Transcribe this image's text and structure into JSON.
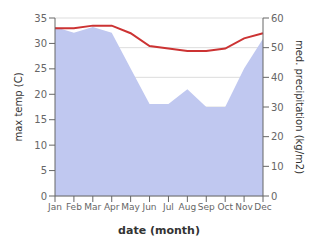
{
  "chart_data": {
    "type": "line",
    "xlabel": "date (month)",
    "ylabel": "max temp (C)",
    "y2label": "med. precipitation (kg/m2)",
    "categories": [
      "Jan",
      "Feb",
      "Mar",
      "Apr",
      "May",
      "Jun",
      "Jul",
      "Aug",
      "Sep",
      "Oct",
      "Nov",
      "Dec"
    ],
    "series": [
      {
        "type": "area",
        "axis": "y2",
        "color": "#c0c8f0",
        "values": [
          57,
          55,
          57,
          55,
          43,
          31,
          31,
          36,
          30,
          30,
          43,
          53
        ]
      },
      {
        "type": "line",
        "color": "#cc3333",
        "values": [
          33,
          33,
          33.5,
          33.5,
          32,
          29.5,
          29,
          28.5,
          28.5,
          29,
          31,
          32
        ]
      }
    ],
    "ylim": [
      0,
      35
    ],
    "yticks": [
      0,
      5,
      10,
      15,
      20,
      25,
      30,
      35
    ],
    "y2lim": [
      0,
      60
    ],
    "y2ticks": [
      0,
      10,
      20,
      30,
      40,
      50,
      60
    ],
    "grid": true
  }
}
